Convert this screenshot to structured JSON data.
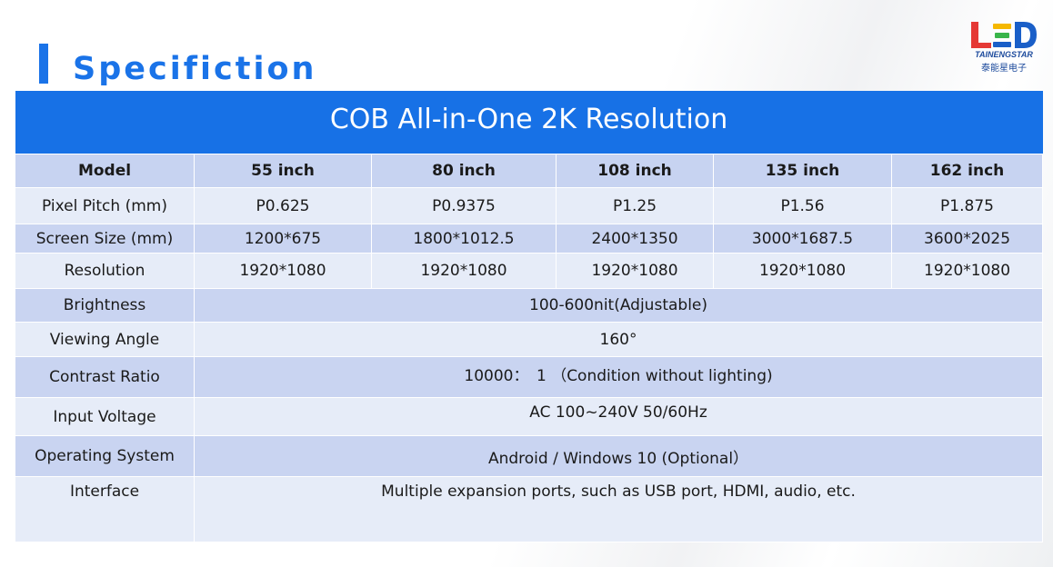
{
  "page": {
    "title": "Specifiction"
  },
  "logo": {
    "mark": "LED",
    "brand_en": "TAINENGSTAR",
    "brand_cn": "泰能星电子",
    "colors": {
      "red": "#e53935",
      "yellow": "#f5b800",
      "green": "#39b54a",
      "blue": "#1a5fc8"
    }
  },
  "colors": {
    "accent": "#1a73e8",
    "banner": "#1771e6",
    "row_dark": "#c9d4f1",
    "row_light": "#e6ecf8"
  },
  "table": {
    "banner": "COB All-in-One 2K Resolution",
    "header": {
      "label": "Model",
      "columns": [
        "55 inch",
        "80 inch",
        "108 inch",
        "135 inch",
        "162 inch"
      ]
    },
    "rows": [
      {
        "label": "Pixel Pitch (mm)",
        "values": [
          "P0.625",
          "P0.9375",
          "P1.25",
          "P1.56",
          "P1.875"
        ]
      },
      {
        "label": "Screen Size (mm)",
        "values": [
          "1200*675",
          "1800*1012.5",
          "2400*1350",
          "3000*1687.5",
          "3600*2025"
        ]
      },
      {
        "label": "Resolution",
        "values": [
          "1920*1080",
          "1920*1080",
          "1920*1080",
          "1920*1080",
          "1920*1080"
        ]
      },
      {
        "label": "Brightness",
        "value": "100-600nit(Adjustable)"
      },
      {
        "label": "Viewing Angle",
        "value": "160°"
      },
      {
        "label": "Contrast Ratio",
        "value": "10000：　1 （Condition without lighting)"
      },
      {
        "label": "Input Voltage",
        "value": "AC 100~240V 50/60Hz"
      },
      {
        "label": "Operating System",
        "value": "Android / Windows 10 (Optional）"
      },
      {
        "label": "Interface",
        "value": "Multiple expansion ports, such as USB port, HDMI, audio, etc."
      }
    ]
  }
}
